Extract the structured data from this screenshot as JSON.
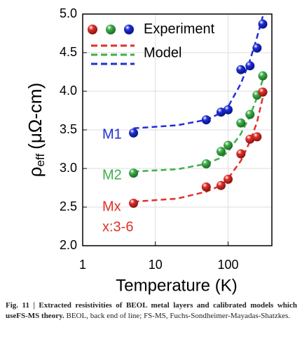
{
  "chart_data": {
    "type": "scatter",
    "x_label": "Temperature (K)",
    "y_label": {
      "symbol": "ρ",
      "subscript": "eff",
      "unit": "(μΩ-cm)"
    },
    "xlim": [
      1,
      400
    ],
    "xticks": [
      1,
      10,
      100
    ],
    "log_x": true,
    "ylim": [
      2,
      5
    ],
    "yticks": [
      {
        "value": 2,
        "label": "2.0"
      },
      {
        "value": 2.5,
        "label": "2.5"
      },
      {
        "value": 3,
        "label": "3.0"
      },
      {
        "value": 3.5,
        "label": "3.5"
      },
      {
        "value": 4,
        "label": "4.0"
      },
      {
        "value": 4.5,
        "label": "4.5"
      },
      {
        "value": 5,
        "label": "5.0"
      }
    ],
    "grid": true,
    "legend": [
      "Experiment",
      "Model"
    ],
    "series": [
      {
        "name": "M1",
        "color": "#1f2fd6",
        "x": [
          5,
          50,
          80,
          100,
          150,
          200,
          250,
          300
        ],
        "values": [
          3.46,
          3.63,
          3.73,
          3.76,
          4.28,
          4.33,
          4.56,
          4.87
        ],
        "model_x": [
          5,
          20,
          50,
          80,
          100,
          150,
          200,
          250,
          300
        ],
        "model_values": [
          3.52,
          3.56,
          3.63,
          3.72,
          3.8,
          4.1,
          4.4,
          4.7,
          4.97
        ]
      },
      {
        "name": "M2",
        "color": "#3fae49",
        "x": [
          5,
          50,
          80,
          100,
          150,
          200,
          250,
          300
        ],
        "values": [
          2.94,
          3.06,
          3.22,
          3.3,
          3.59,
          3.7,
          3.95,
          4.2
        ],
        "model_x": [
          5,
          20,
          50,
          80,
          100,
          150,
          200,
          250,
          300
        ],
        "model_values": [
          2.96,
          2.99,
          3.06,
          3.14,
          3.22,
          3.45,
          3.68,
          3.92,
          4.15
        ]
      },
      {
        "name": "Mx",
        "note": "x:3-6",
        "color": "#e0302a",
        "x": [
          5,
          50,
          80,
          100,
          150,
          200,
          250,
          300
        ],
        "values": [
          2.55,
          2.76,
          2.78,
          2.86,
          3.19,
          3.38,
          3.41,
          3.99
        ],
        "model_x": [
          5,
          20,
          50,
          80,
          100,
          150,
          200,
          250,
          300
        ],
        "model_values": [
          2.57,
          2.61,
          2.7,
          2.78,
          2.87,
          3.1,
          3.35,
          3.6,
          3.92
        ]
      }
    ]
  },
  "caption": {
    "bold": "Fig. 11 | Extracted resistivities of BEOL metal layers and calibrated models which useFS-MS theory.",
    "text": "BEOL, back end of line; FS-MS, Fuchs-Sondheimer-Mayadas-Shatzkes."
  }
}
